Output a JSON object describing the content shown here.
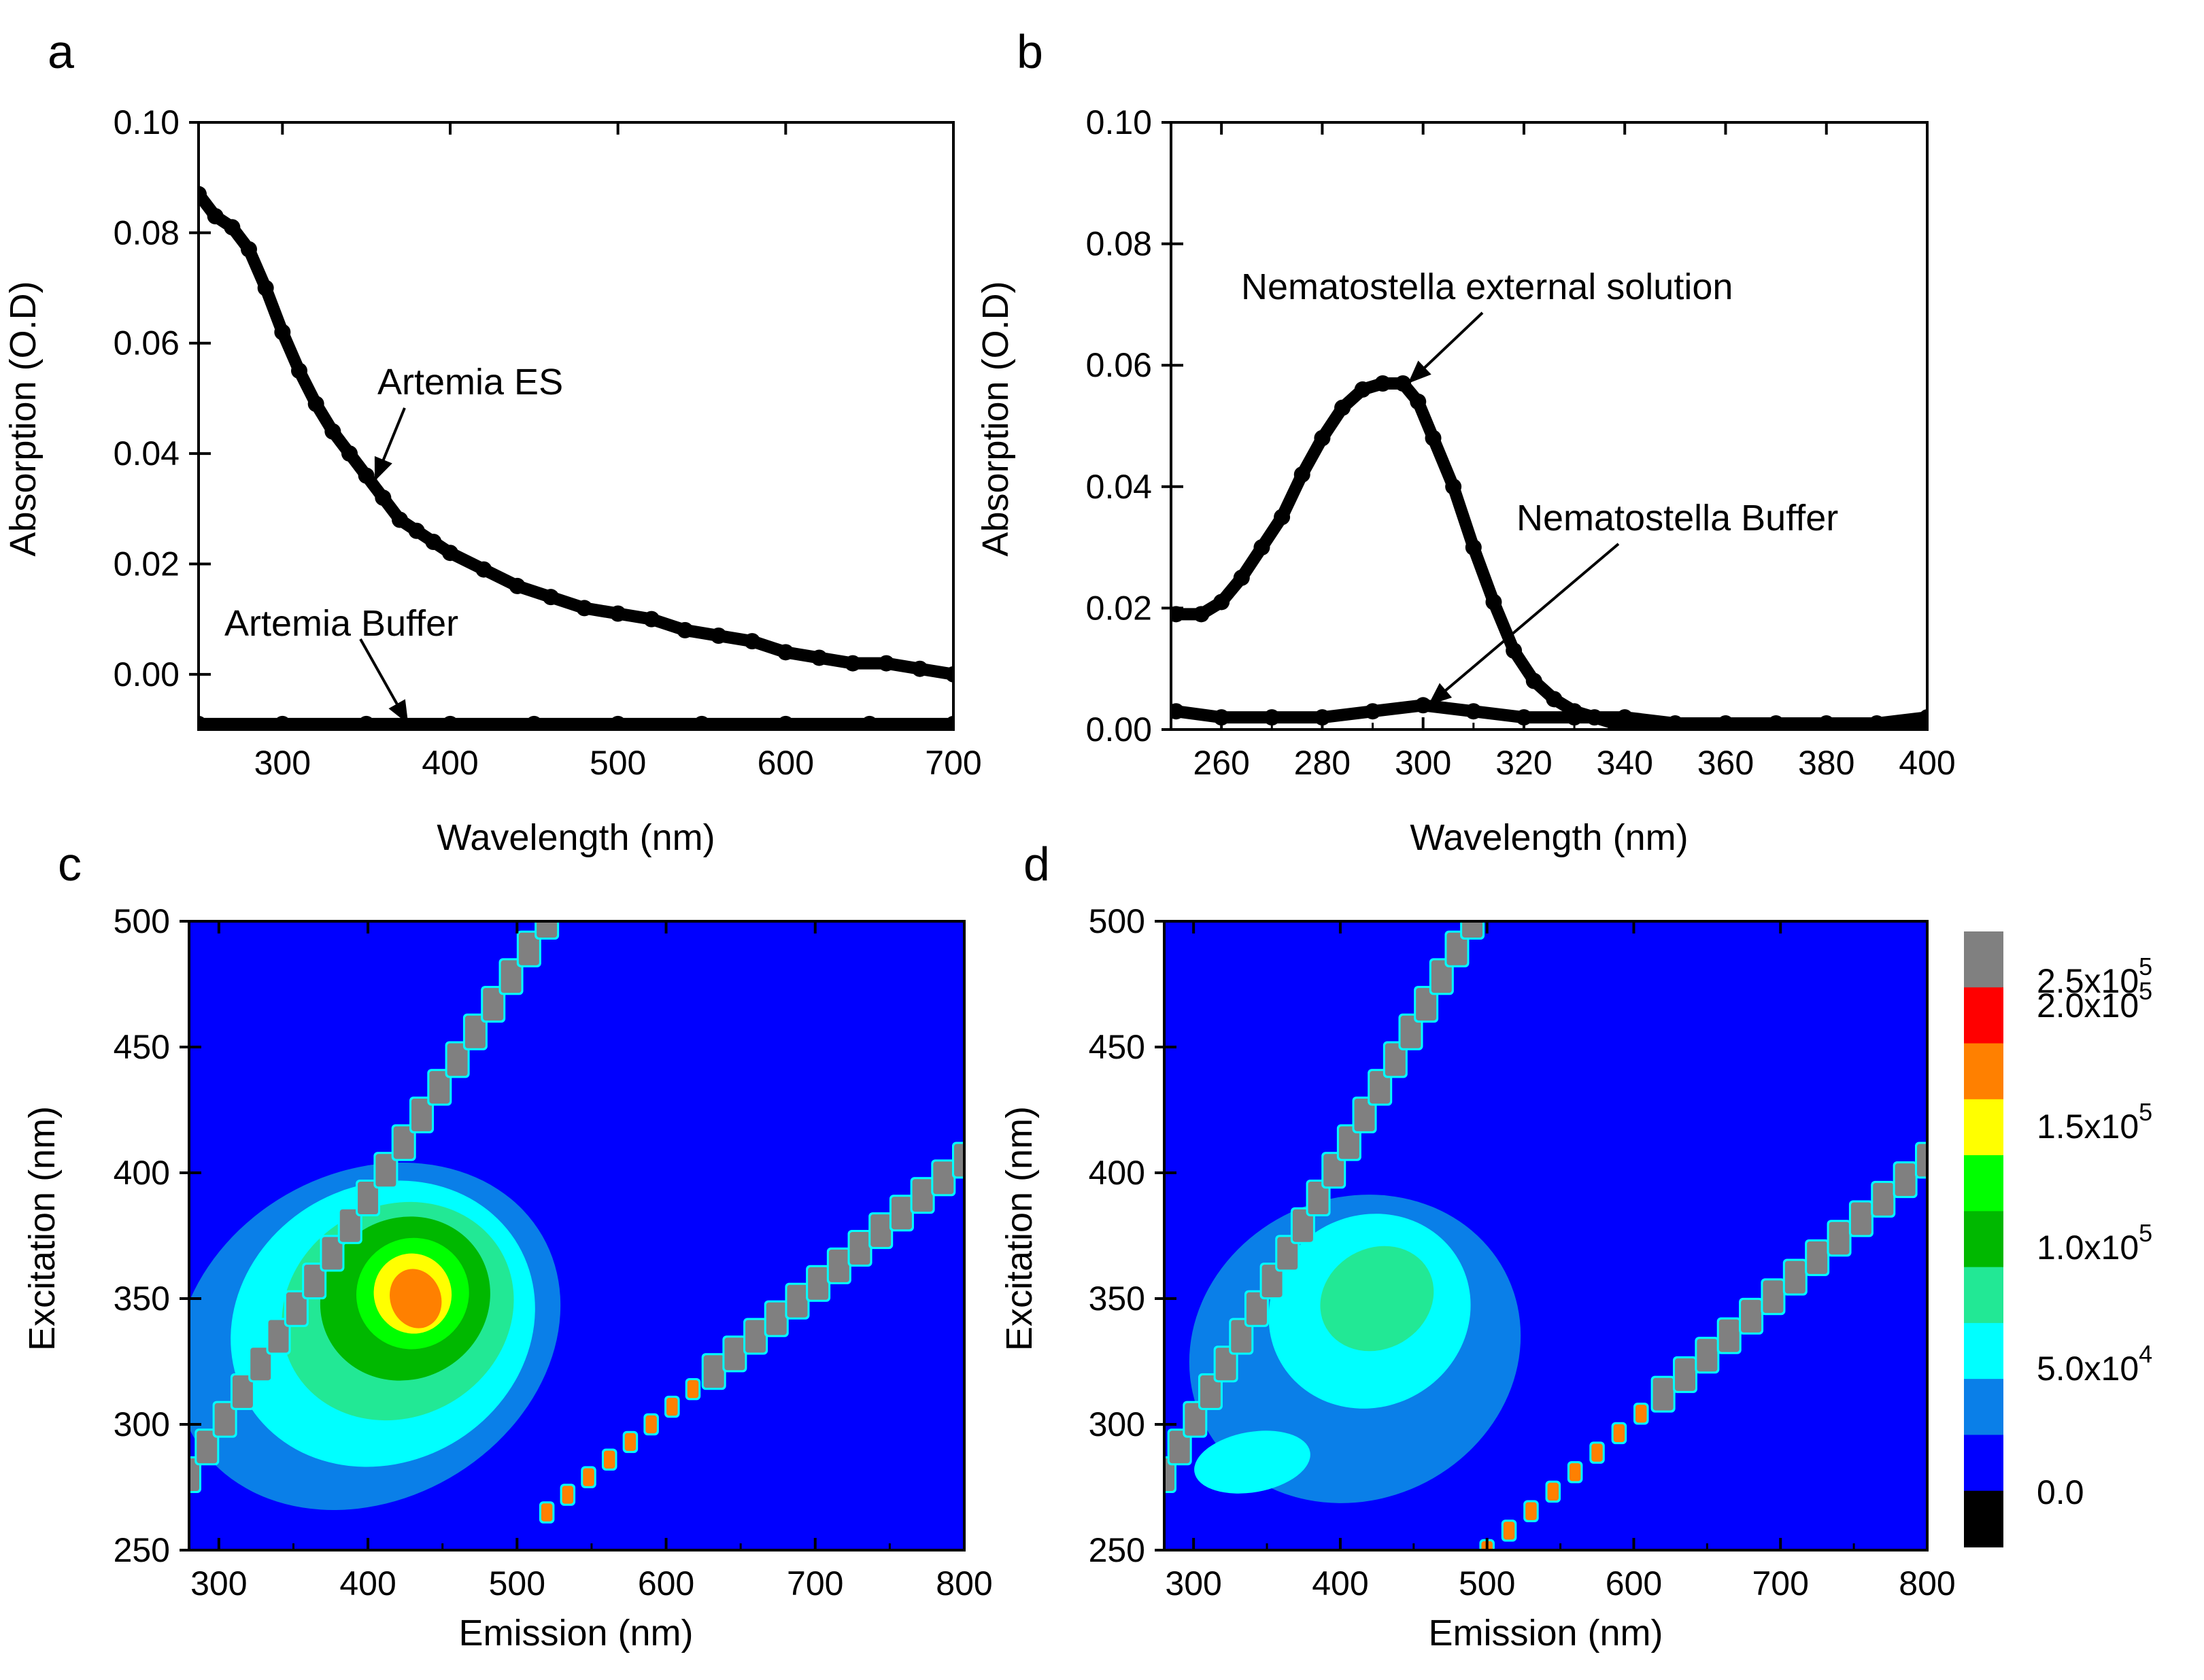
{
  "figure": {
    "panels": [
      "a",
      "b",
      "c",
      "d"
    ]
  },
  "colors": {
    "background": "#0000ff",
    "levels": [
      "#000000",
      "#0000ff",
      "#0a7fe8",
      "#00ffff",
      "#22e895",
      "#00b800",
      "#00ff00",
      "#ffff00",
      "#ff8000",
      "#ff0000",
      "#808080"
    ],
    "line": "#000000"
  },
  "chart_data": [
    {
      "panel": "a",
      "type": "scatter",
      "xlabel": "Wavelength (nm)",
      "ylabel": "Absorption (O.D)",
      "xlim": [
        250,
        700
      ],
      "ylim": [
        -0.01,
        0.1
      ],
      "xticks": [
        300,
        400,
        500,
        600,
        700
      ],
      "yticks": [
        0.0,
        0.02,
        0.04,
        0.06,
        0.08,
        0.1
      ],
      "ytick_labels": [
        "0.00",
        "0.02",
        "0.04",
        "0.06",
        "0.08",
        "0.10"
      ],
      "series": [
        {
          "name": "Artemia ES",
          "x": [
            250,
            260,
            270,
            280,
            290,
            300,
            310,
            320,
            330,
            340,
            350,
            360,
            370,
            380,
            390,
            400,
            420,
            440,
            460,
            480,
            500,
            520,
            540,
            560,
            580,
            600,
            620,
            640,
            660,
            680,
            700
          ],
          "y": [
            0.087,
            0.083,
            0.081,
            0.077,
            0.07,
            0.062,
            0.055,
            0.049,
            0.044,
            0.04,
            0.036,
            0.032,
            0.028,
            0.026,
            0.024,
            0.022,
            0.019,
            0.016,
            0.014,
            0.012,
            0.011,
            0.01,
            0.008,
            0.007,
            0.006,
            0.004,
            0.003,
            0.002,
            0.002,
            0.001,
            0.0
          ]
        },
        {
          "name": "Artemia Buffer",
          "x": [
            250,
            300,
            350,
            400,
            450,
            500,
            550,
            600,
            650,
            700
          ],
          "y": [
            -0.009,
            -0.009,
            -0.009,
            -0.009,
            -0.009,
            -0.009,
            -0.009,
            -0.009,
            -0.009,
            -0.009
          ]
        }
      ],
      "annotations": [
        {
          "text": "Artemia ES",
          "target": [
            355,
            0.035
          ]
        },
        {
          "text": "Artemia Buffer",
          "target": [
            375,
            -0.009
          ]
        }
      ]
    },
    {
      "panel": "b",
      "type": "scatter",
      "xlabel": "Wavelength (nm)",
      "ylabel": "Absorption (O.D)",
      "xlim": [
        250,
        400
      ],
      "ylim": [
        0,
        0.1
      ],
      "xticks": [
        260,
        280,
        300,
        320,
        340,
        360,
        380,
        400
      ],
      "yticks": [
        0.0,
        0.02,
        0.04,
        0.06,
        0.08,
        0.1
      ],
      "ytick_labels": [
        "0.00",
        "0.02",
        "0.04",
        "0.06",
        "0.08",
        "0.10"
      ],
      "series": [
        {
          "name": "Nematostella external solution",
          "x": [
            251,
            256,
            260,
            264,
            268,
            272,
            276,
            280,
            284,
            288,
            292,
            296,
            299,
            302,
            306,
            310,
            314,
            318,
            322,
            326,
            330,
            334,
            338,
            342,
            346,
            350,
            360,
            370,
            380,
            390,
            400
          ],
          "y": [
            0.019,
            0.019,
            0.021,
            0.025,
            0.03,
            0.035,
            0.042,
            0.048,
            0.053,
            0.056,
            0.057,
            0.057,
            0.054,
            0.048,
            0.04,
            0.03,
            0.021,
            0.013,
            0.008,
            0.005,
            0.003,
            0.002,
            0.001,
            0.001,
            0.001,
            0.001,
            0.001,
            0.001,
            0.001,
            0.001,
            0.001
          ]
        },
        {
          "name": "Nematostella Buffer",
          "x": [
            251,
            260,
            270,
            280,
            290,
            300,
            310,
            320,
            330,
            340,
            350,
            360,
            370,
            380,
            390,
            400
          ],
          "y": [
            0.003,
            0.002,
            0.002,
            0.002,
            0.003,
            0.004,
            0.003,
            0.002,
            0.002,
            0.002,
            0.001,
            0.001,
            0.001,
            0.001,
            0.001,
            0.002
          ]
        }
      ],
      "annotations": [
        {
          "text": "Nematostella external solution",
          "target": [
            297,
            0.057
          ]
        },
        {
          "text": "Nematostella Buffer",
          "target": [
            301,
            0.004
          ]
        }
      ]
    },
    {
      "panel": "c",
      "type": "heatmap",
      "xlabel": "Emission (nm)",
      "ylabel": "Excitation (nm)",
      "xlim": [
        280,
        800
      ],
      "ylim": [
        250,
        500
      ],
      "xticks": [
        300,
        400,
        500,
        600,
        700,
        800
      ],
      "yticks": [
        250,
        300,
        350,
        400,
        450,
        500
      ],
      "blobs": [
        {
          "cx": 400,
          "cy": 335,
          "rx": 135,
          "ry": 65,
          "rot": -30,
          "level": 2
        },
        {
          "cx": 410,
          "cy": 340,
          "rx": 105,
          "ry": 55,
          "rot": -30,
          "level": 3
        },
        {
          "cx": 420,
          "cy": 345,
          "rx": 80,
          "ry": 42,
          "rot": -30,
          "level": 4
        },
        {
          "cx": 425,
          "cy": 350,
          "rx": 58,
          "ry": 32,
          "rot": -30,
          "level": 5
        },
        {
          "cx": 430,
          "cy": 352,
          "rx": 38,
          "ry": 22,
          "rot": -30,
          "level": 6
        },
        {
          "cx": 430,
          "cy": 352,
          "rx": 26,
          "ry": 16,
          "rot": -20,
          "level": 7
        },
        {
          "cx": 432,
          "cy": 350,
          "rx": 17,
          "ry": 12,
          "rot": -20,
          "level": 8
        }
      ],
      "scatter_lines": [
        {
          "from": [
            280,
            280
          ],
          "to": [
            520,
            500
          ],
          "level": 10
        },
        {
          "from": [
            520,
            265
          ],
          "to": [
            800,
            405
          ],
          "level": 10
        }
      ]
    },
    {
      "panel": "d",
      "type": "heatmap",
      "xlabel": "Emission (nm)",
      "ylabel": "Excitation (nm)",
      "xlim": [
        280,
        800
      ],
      "ylim": [
        250,
        500
      ],
      "xticks": [
        300,
        400,
        500,
        600,
        700,
        800
      ],
      "yticks": [
        250,
        300,
        350,
        400,
        450,
        500
      ],
      "colorbar": {
        "levels": [
          0.0,
          50000,
          100000,
          150000,
          200000,
          250000
        ],
        "labels": [
          "0.0",
          "5.0x10",
          "1.0x10",
          "1.5x10",
          "2.0x10",
          "2.5x10"
        ],
        "exponents": [
          "",
          "4",
          "5",
          "5",
          "5",
          "5"
        ]
      },
      "blobs": [
        {
          "cx": 410,
          "cy": 330,
          "rx": 115,
          "ry": 60,
          "rot": -25,
          "level": 2
        },
        {
          "cx": 420,
          "cy": 345,
          "rx": 70,
          "ry": 38,
          "rot": -30,
          "level": 3
        },
        {
          "cx": 425,
          "cy": 350,
          "rx": 40,
          "ry": 20,
          "rot": -30,
          "level": 4
        },
        {
          "cx": 340,
          "cy": 285,
          "rx": 40,
          "ry": 12,
          "rot": -10,
          "level": 3
        }
      ],
      "scatter_lines": [
        {
          "from": [
            280,
            280
          ],
          "to": [
            490,
            500
          ],
          "level": 10
        },
        {
          "from": [
            500,
            250
          ],
          "to": [
            800,
            405
          ],
          "level": 10
        }
      ]
    }
  ]
}
